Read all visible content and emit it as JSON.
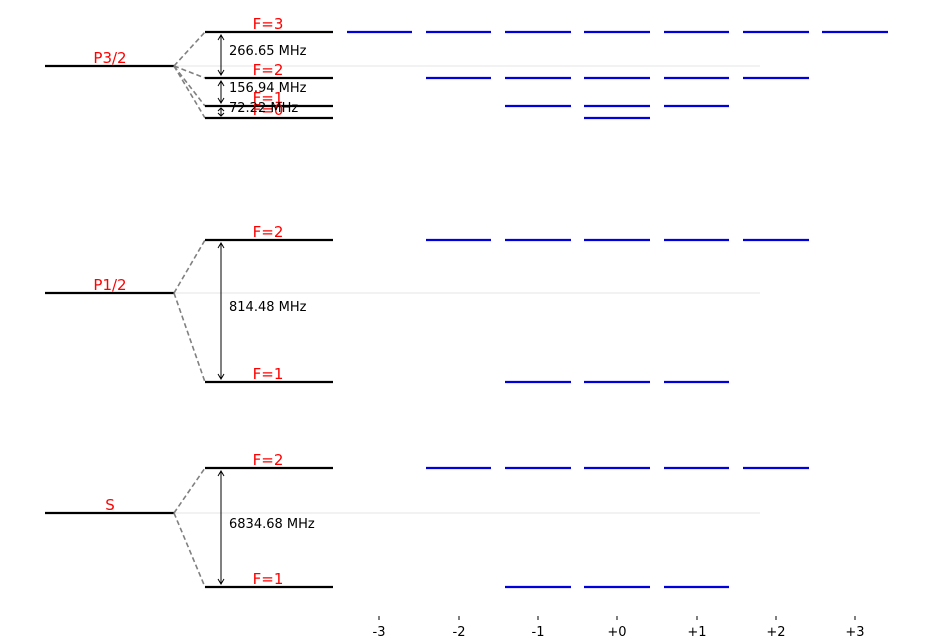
{
  "colors": {
    "fine_color": "#000000",
    "gross_color": "#000000",
    "label_color": "#ff0000",
    "zeeman_color": "#0000dd",
    "connector_color": "#808080",
    "guide_color": "#dddddd"
  },
  "mf_axis": {
    "ticks": [
      "-3",
      "-2",
      "-1",
      "+0",
      "+1",
      "+2",
      "+3"
    ]
  },
  "manifolds": [
    {
      "name": "P3/2",
      "levels": [
        {
          "label": "F=3",
          "f": 3
        },
        {
          "label": "F=2",
          "f": 2
        },
        {
          "label": "F=1",
          "f": 1
        },
        {
          "label": "F=0",
          "f": 0
        }
      ],
      "splittings": [
        "266.65 MHz",
        "156.94 MHz",
        "72.22 MHz"
      ]
    },
    {
      "name": "P1/2",
      "levels": [
        {
          "label": "F=2",
          "f": 2
        },
        {
          "label": "F=1",
          "f": 1
        }
      ],
      "splittings": [
        "814.48 MHz"
      ]
    },
    {
      "name": "S",
      "levels": [
        {
          "label": "F=2",
          "f": 2
        },
        {
          "label": "F=1",
          "f": 1
        }
      ],
      "splittings": [
        "6834.68 MHz"
      ]
    }
  ]
}
